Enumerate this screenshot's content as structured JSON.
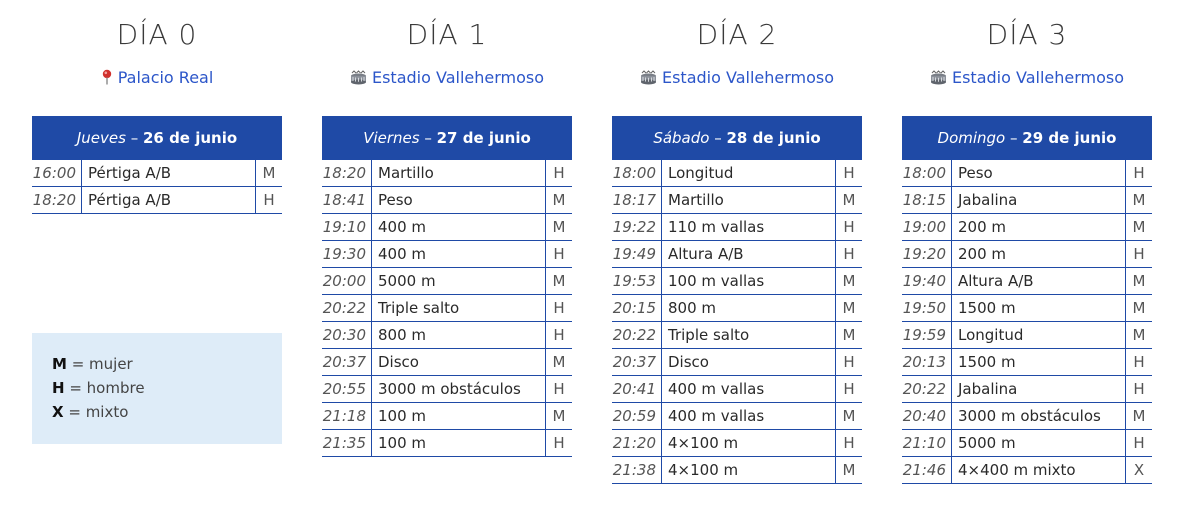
{
  "days": [
    {
      "title": "DÍA 0",
      "venue": {
        "name": "Palacio Real",
        "icon": "map-pin-icon"
      },
      "weekday": "Jueves",
      "date": "26 de junio",
      "events": [
        {
          "time": "16:00",
          "event": "Pértiga A/B",
          "sex": "M"
        },
        {
          "time": "18:20",
          "event": "Pértiga A/B",
          "sex": "H"
        }
      ]
    },
    {
      "title": "DÍA 1",
      "venue": {
        "name": "Estadio Vallehermoso",
        "icon": "stadium-icon"
      },
      "weekday": "Viernes",
      "date": "27 de junio",
      "events": [
        {
          "time": "18:20",
          "event": "Martillo",
          "sex": "H"
        },
        {
          "time": "18:41",
          "event": "Peso",
          "sex": "M"
        },
        {
          "time": "19:10",
          "event": "400 m",
          "sex": "M"
        },
        {
          "time": "19:30",
          "event": "400 m",
          "sex": "H"
        },
        {
          "time": "20:00",
          "event": "5000 m",
          "sex": "M"
        },
        {
          "time": "20:22",
          "event": "Triple salto",
          "sex": "H"
        },
        {
          "time": "20:30",
          "event": "800 m",
          "sex": "H"
        },
        {
          "time": "20:37",
          "event": "Disco",
          "sex": "M"
        },
        {
          "time": "20:55",
          "event": "3000 m obstáculos",
          "sex": "H"
        },
        {
          "time": "21:18",
          "event": "100 m",
          "sex": "M"
        },
        {
          "time": "21:35",
          "event": "100 m",
          "sex": "H"
        }
      ]
    },
    {
      "title": "DÍA 2",
      "venue": {
        "name": "Estadio Vallehermoso",
        "icon": "stadium-icon"
      },
      "weekday": "Sábado",
      "date": "28 de junio",
      "events": [
        {
          "time": "18:00",
          "event": "Longitud",
          "sex": "H"
        },
        {
          "time": "18:17",
          "event": "Martillo",
          "sex": "M"
        },
        {
          "time": "19:22",
          "event": "110 m vallas",
          "sex": "H"
        },
        {
          "time": "19:49",
          "event": "Altura A/B",
          "sex": "H"
        },
        {
          "time": "19:53",
          "event": "100 m vallas",
          "sex": "M"
        },
        {
          "time": "20:15",
          "event": "800 m",
          "sex": "M"
        },
        {
          "time": "20:22",
          "event": "Triple salto",
          "sex": "M"
        },
        {
          "time": "20:37",
          "event": "Disco",
          "sex": "H"
        },
        {
          "time": "20:41",
          "event": "400 m vallas",
          "sex": "H"
        },
        {
          "time": "20:59",
          "event": "400 m vallas",
          "sex": "M"
        },
        {
          "time": "21:20",
          "event": "4×100 m",
          "sex": "H"
        },
        {
          "time": "21:38",
          "event": "4×100 m",
          "sex": "M"
        }
      ]
    },
    {
      "title": "DÍA 3",
      "venue": {
        "name": "Estadio Vallehermoso",
        "icon": "stadium-icon"
      },
      "weekday": "Domingo",
      "date": "29 de junio",
      "events": [
        {
          "time": "18:00",
          "event": "Peso",
          "sex": "H"
        },
        {
          "time": "18:15",
          "event": "Jabalina",
          "sex": "M"
        },
        {
          "time": "19:00",
          "event": "200 m",
          "sex": "M"
        },
        {
          "time": "19:20",
          "event": "200 m",
          "sex": "H"
        },
        {
          "time": "19:40",
          "event": "Altura A/B",
          "sex": "M"
        },
        {
          "time": "19:50",
          "event": "1500 m",
          "sex": "M"
        },
        {
          "time": "19:59",
          "event": "Longitud",
          "sex": "M"
        },
        {
          "time": "20:13",
          "event": "1500 m",
          "sex": "H"
        },
        {
          "time": "20:22",
          "event": "Jabalina",
          "sex": "H"
        },
        {
          "time": "20:40",
          "event": "3000 m obstáculos",
          "sex": "M"
        },
        {
          "time": "21:10",
          "event": "5000 m",
          "sex": "H"
        },
        {
          "time": "21:46",
          "event": "4×400 m mixto",
          "sex": "X"
        }
      ]
    }
  ],
  "legend": [
    {
      "key": "M",
      "text": "mujer"
    },
    {
      "key": "H",
      "text": "hombre"
    },
    {
      "key": "X",
      "text": "mixto"
    }
  ],
  "colors": {
    "accent": "#1f4aa6",
    "link": "#2c56c9",
    "legend_bg": "#deecf8"
  }
}
